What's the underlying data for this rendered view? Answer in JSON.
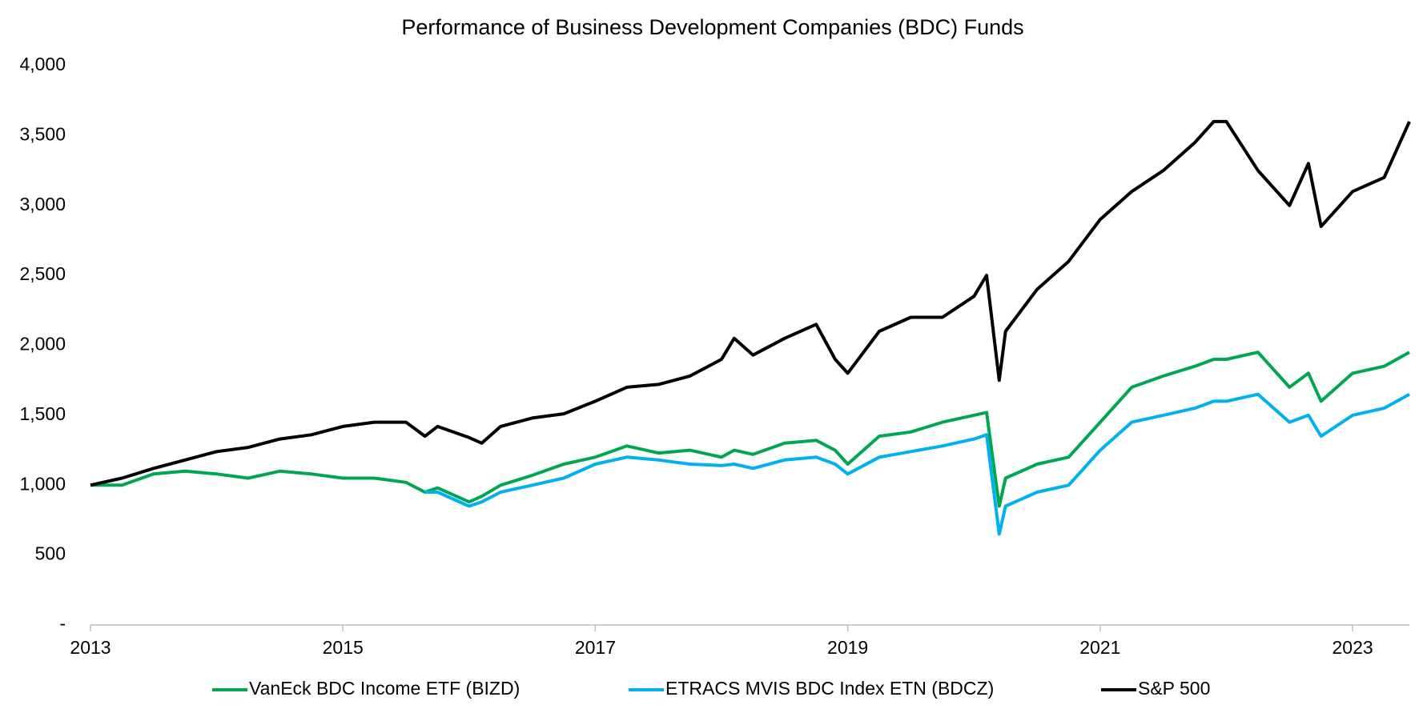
{
  "chart_data": {
    "type": "line",
    "title": "Performance of Business Development Companies (BDC) Funds",
    "x": [
      2013.0,
      2013.25,
      2013.5,
      2013.75,
      2014.0,
      2014.25,
      2014.5,
      2014.75,
      2015.0,
      2015.25,
      2015.5,
      2015.65,
      2015.75,
      2016.0,
      2016.1,
      2016.25,
      2016.5,
      2016.75,
      2017.0,
      2017.25,
      2017.5,
      2017.75,
      2018.0,
      2018.1,
      2018.25,
      2018.5,
      2018.75,
      2018.9,
      2019.0,
      2019.25,
      2019.5,
      2019.75,
      2020.0,
      2020.1,
      2020.2,
      2020.25,
      2020.5,
      2020.75,
      2021.0,
      2021.25,
      2021.5,
      2021.75,
      2021.9,
      2022.0,
      2022.25,
      2022.5,
      2022.65,
      2022.75,
      2023.0,
      2023.25,
      2023.45
    ],
    "series": [
      {
        "name": "VanEck BDC Income ETF (BIZD)",
        "color": "#00a651",
        "values": [
          1000,
          1000,
          1080,
          1100,
          1080,
          1050,
          1100,
          1080,
          1050,
          1050,
          1020,
          950,
          980,
          880,
          920,
          1000,
          1070,
          1150,
          1200,
          1280,
          1230,
          1250,
          1200,
          1250,
          1220,
          1300,
          1320,
          1250,
          1150,
          1350,
          1380,
          1450,
          1500,
          1520,
          850,
          1050,
          1150,
          1200,
          1450,
          1700,
          1780,
          1850,
          1900,
          1900,
          1950,
          1700,
          1800,
          1600,
          1800,
          1850,
          1950
        ]
      },
      {
        "name": "ETRACS MVIS BDC Index ETN (BDCZ)",
        "color": "#00b0f0",
        "values": [
          null,
          null,
          null,
          null,
          null,
          null,
          null,
          null,
          null,
          null,
          null,
          950,
          950,
          850,
          880,
          950,
          1000,
          1050,
          1150,
          1200,
          1180,
          1150,
          1140,
          1150,
          1120,
          1180,
          1200,
          1150,
          1080,
          1200,
          1240,
          1280,
          1330,
          1360,
          650,
          850,
          950,
          1000,
          1250,
          1450,
          1500,
          1550,
          1600,
          1600,
          1650,
          1450,
          1500,
          1350,
          1500,
          1550,
          1650
        ]
      },
      {
        "name": "S&P 500",
        "color": "#000000",
        "values": [
          1000,
          1050,
          1120,
          1180,
          1240,
          1270,
          1330,
          1360,
          1420,
          1450,
          1450,
          1350,
          1420,
          1340,
          1300,
          1420,
          1480,
          1510,
          1600,
          1700,
          1720,
          1780,
          1900,
          2050,
          1930,
          2050,
          2150,
          1900,
          1800,
          2100,
          2200,
          2200,
          2350,
          2500,
          1750,
          2100,
          2400,
          2600,
          2900,
          3100,
          3250,
          3450,
          3600,
          3600,
          3250,
          3000,
          3300,
          2850,
          3100,
          3200,
          3600
        ]
      }
    ],
    "xlim": [
      2013,
      2023.45
    ],
    "xticks": [
      2013,
      2015,
      2017,
      2019,
      2021,
      2023
    ],
    "ylim": [
      0,
      4000
    ],
    "yticks": [
      {
        "value": 0,
        "label": "-"
      },
      500,
      {
        "value": 1000,
        "label": "1,000"
      },
      {
        "value": 1500,
        "label": "1,500"
      },
      {
        "value": 2000,
        "label": "2,000"
      },
      {
        "value": 2500,
        "label": "2,500"
      },
      {
        "value": 3000,
        "label": "3,000"
      },
      {
        "value": 3500,
        "label": "3,500"
      },
      {
        "value": 4000,
        "label": "4,000"
      }
    ],
    "legend": "bottom"
  }
}
